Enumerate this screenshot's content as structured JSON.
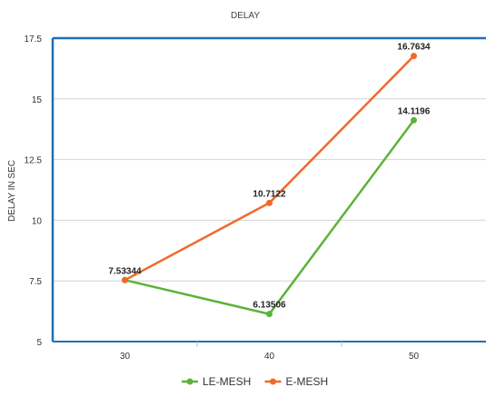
{
  "chart_data": {
    "type": "line",
    "title": "DELAY",
    "xlabel": "",
    "ylabel": "DELAY IN SEC",
    "categories": [
      "30",
      "40",
      "50"
    ],
    "ylim": [
      5,
      17.5
    ],
    "yticks": [
      "5",
      "7.5",
      "10",
      "12.5",
      "15",
      "17.5"
    ],
    "grid": true,
    "legend_position": "bottom",
    "series": [
      {
        "name": "LE-MESH",
        "color": "#5cb338",
        "values": [
          7.53344,
          6.13506,
          14.1196
        ],
        "labels": [
          "",
          "6.13506",
          "14.1196"
        ]
      },
      {
        "name": "E-MESH",
        "color": "#ef6a2b",
        "values": [
          7.53344,
          10.7122,
          16.7634
        ],
        "labels": [
          "7.53344",
          "10.7122",
          "16.7634"
        ]
      }
    ]
  }
}
